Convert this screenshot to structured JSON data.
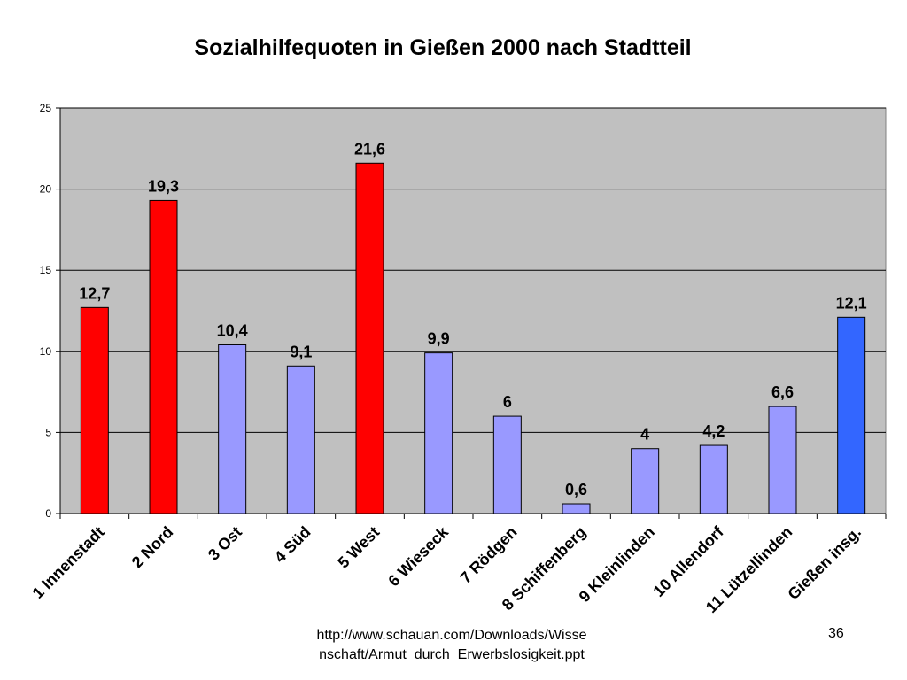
{
  "chart_data": {
    "type": "bar",
    "title": "Sozialhilfequoten in Gießen 2000 nach Stadtteil",
    "xlabel": "",
    "ylabel": "",
    "ylim": [
      0,
      25
    ],
    "yticks": [
      "0",
      "5",
      "10",
      "15",
      "20",
      "25"
    ],
    "grid": true,
    "categories": [
      "1 Innenstadt",
      "2 Nord",
      "3 Ost",
      "4 Süd",
      "5 West",
      "6 Wieseck",
      "7 Rödgen",
      "8 Schiffenberg",
      "9 Kleinlinden",
      "10 Allendorf",
      "11 Lützellinden",
      "Gießen insg."
    ],
    "values": [
      12.7,
      19.3,
      10.4,
      9.1,
      21.6,
      9.9,
      6,
      0.6,
      4,
      4.2,
      6.6,
      12.1
    ],
    "data_labels": [
      "12,7",
      "19,3",
      "10,4",
      "9,1",
      "21,6",
      "9,9",
      "6",
      "0,6",
      "4",
      "4,2",
      "6,6",
      "12,1"
    ],
    "bar_colors": [
      "#ff0000",
      "#ff0000",
      "#9999ff",
      "#9999ff",
      "#ff0000",
      "#9999ff",
      "#9999ff",
      "#9999ff",
      "#9999ff",
      "#9999ff",
      "#9999ff",
      "#3366ff"
    ],
    "plot_background": "#c0c0c0"
  },
  "footer": {
    "source": "http://www.schauan.com/Downloads/Wissenschaft/Armut_durch_Erwerbslosigkeit.ppt",
    "page_number": "36"
  }
}
